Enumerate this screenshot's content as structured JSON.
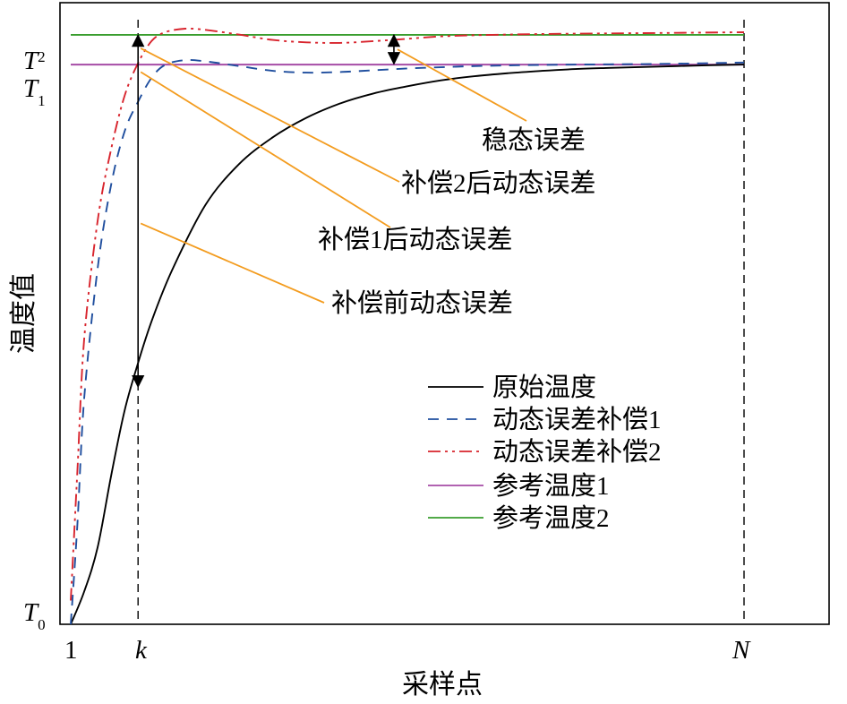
{
  "chart_data": {
    "type": "line",
    "title": "",
    "xlabel": "采样点",
    "ylabel": "温度值",
    "xlim": [
      0,
      100
    ],
    "ylim": [
      0,
      100
    ],
    "grid": false,
    "legend_position": "center-right",
    "x_ticks": [
      {
        "label": "1",
        "x": 0
      },
      {
        "label": "k",
        "x": 10
      },
      {
        "label": "N",
        "x": 100
      }
    ],
    "y_ticks": [
      {
        "main": "T",
        "sub": "0",
        "y": 0
      },
      {
        "main": "T",
        "sub": "1",
        "y": 94.25
      },
      {
        "main": "T",
        "sub": "2",
        "y": 99.25
      }
    ],
    "vertical_markers": [
      {
        "name": "k",
        "x": 10
      },
      {
        "name": "N",
        "x": 100
      }
    ],
    "series": [
      {
        "name": "原始温度",
        "color": "#000000",
        "dash": "",
        "x": [
          0,
          2,
          4,
          6,
          8,
          10,
          12,
          15,
          20,
          25,
          30,
          35,
          40,
          45,
          50,
          55,
          60,
          65,
          70,
          75,
          80,
          85,
          90,
          95,
          100
        ],
        "y": [
          0,
          5.5,
          13,
          25,
          36,
          44,
          51,
          59.5,
          70.6,
          77.5,
          82,
          85.3,
          87.7,
          89.4,
          90.6,
          91.6,
          92.3,
          92.8,
          93.2,
          93.5,
          93.7,
          93.85,
          94.0,
          94.15,
          94.25
        ]
      },
      {
        "name": "动态误差补偿1",
        "color": "#1f4e9e",
        "dash": "12,9",
        "x": [
          0,
          1,
          2,
          4,
          6,
          8,
          10,
          12,
          14,
          17,
          20,
          25,
          30,
          35,
          40,
          45,
          50,
          55,
          60,
          70,
          80,
          90,
          100
        ],
        "y": [
          0,
          17,
          38,
          60,
          74,
          83,
          88,
          92,
          94.2,
          95,
          94.8,
          94,
          93.2,
          92.9,
          93,
          93.3,
          93.6,
          93.8,
          94,
          94.2,
          94.3,
          94.4,
          94.6
        ]
      },
      {
        "name": "动态误差补偿2",
        "color": "#d8242d",
        "dash": "14,5,3,5,3,5",
        "x": [
          0,
          1,
          2,
          4,
          6,
          8,
          10,
          12,
          14,
          17,
          20,
          25,
          30,
          35,
          40,
          45,
          50,
          55,
          60,
          70,
          80,
          90,
          100
        ],
        "y": [
          4,
          26,
          48,
          68,
          80,
          89,
          94.5,
          98.2,
          99.7,
          100.3,
          100.1,
          99.3,
          98.4,
          98,
          97.9,
          98.2,
          98.6,
          99,
          99.2,
          99.4,
          99.5,
          99.6,
          99.7
        ]
      },
      {
        "name": "参考温度1",
        "color": "#a64ca6",
        "dash": "",
        "x": [
          0,
          100
        ],
        "y": [
          94.25,
          94.25
        ]
      },
      {
        "name": "参考温度2",
        "color": "#3a9e2e",
        "dash": "",
        "x": [
          0,
          100
        ],
        "y": [
          99.25,
          99.25
        ]
      }
    ],
    "error_arrows": [
      {
        "name": "before",
        "x": 10,
        "y_from": 99.2,
        "y_to": 40
      },
      {
        "name": "steady",
        "x": 48,
        "y_from": 99.2,
        "y_to": 94.4
      }
    ],
    "annotations": [
      {
        "text": "稳态误差",
        "x": 48,
        "y": 96.8
      },
      {
        "text": "补偿2后动态误差",
        "x": 10,
        "y": 97.0
      },
      {
        "text": "补偿1后动态误差",
        "x": 10,
        "y": 93.0
      },
      {
        "text": "补偿前动态误差",
        "x": 10,
        "y": 67.5
      }
    ]
  }
}
